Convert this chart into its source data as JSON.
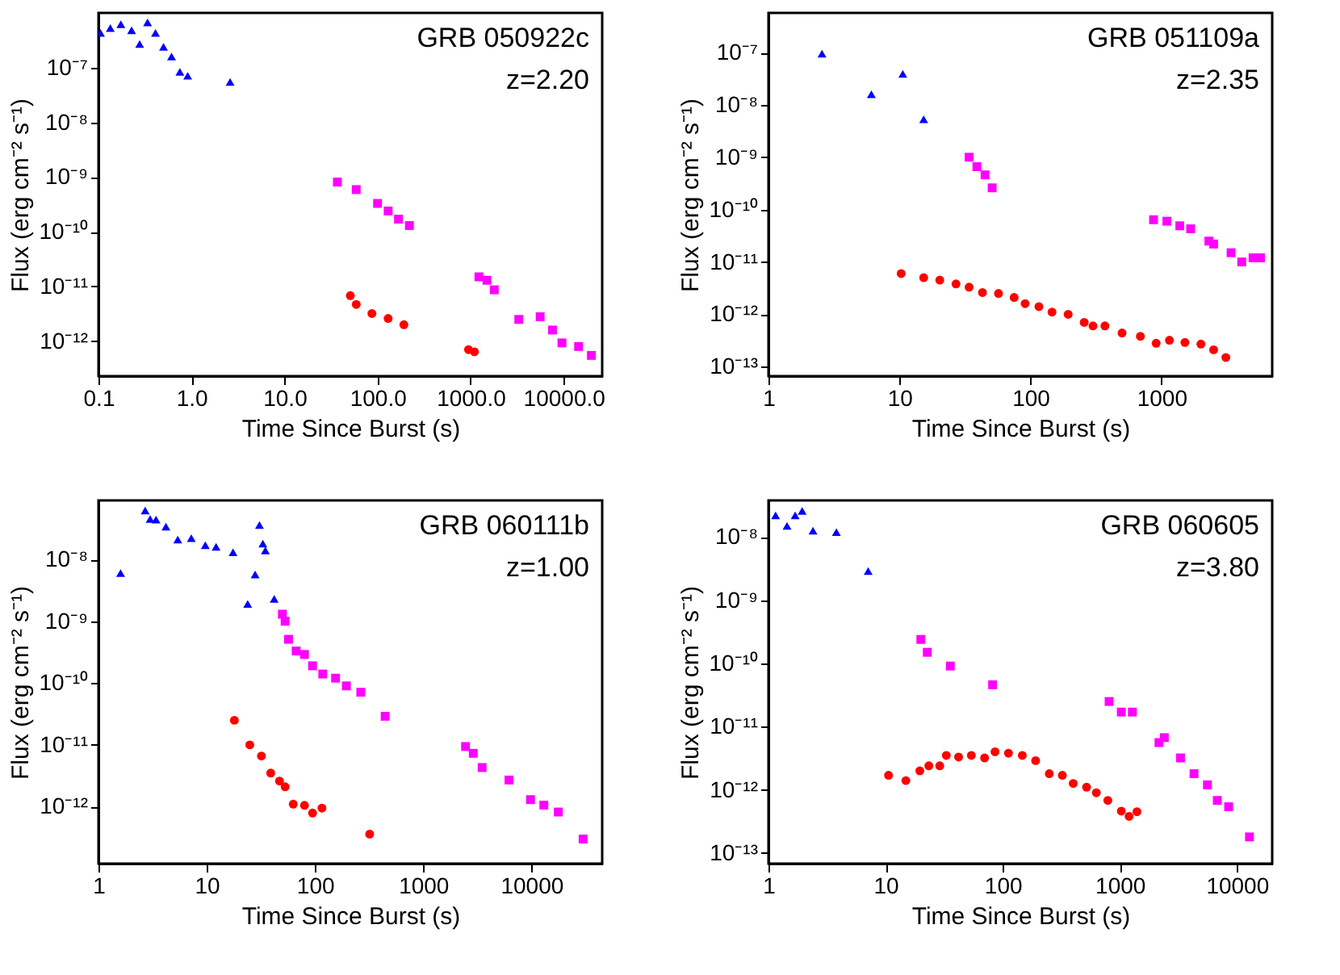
{
  "chart_data": [
    {
      "type": "scatter",
      "xlabel": "Time Since Burst (s)",
      "ylabel": "Flux (erg cm⁻² s⁻¹)",
      "annotations": [
        "GRB 050922c",
        "z=2.20"
      ],
      "log": "xy",
      "grid": false,
      "xlim": [
        0.1,
        26000
      ],
      "ylim": [
        2.3e-13,
        1e-06
      ],
      "xticks": [
        0.1,
        {
          "value": 1,
          "label": "1.0"
        },
        {
          "value": 10,
          "label": "10.0"
        },
        {
          "value": 100,
          "label": "100.0"
        },
        {
          "value": 1000,
          "label": "1000.0"
        },
        {
          "value": 10000,
          "label": "10000.0"
        }
      ],
      "yticks": [
        {
          "value": 1e-07,
          "label": "10⁻⁷"
        },
        {
          "value": 1e-08,
          "label": "10⁻⁸"
        },
        {
          "value": 1e-09,
          "label": "10⁻⁹"
        },
        {
          "value": 1e-10,
          "label": "10⁻¹⁰"
        },
        {
          "value": 1e-11,
          "label": "10⁻¹¹"
        },
        {
          "value": 1e-12,
          "label": "10⁻¹²"
        }
      ],
      "series": [
        {
          "color": "#0000ff",
          "marker": "triangle",
          "x": [
            0.105,
            0.134,
            0.174,
            0.227,
            0.277,
            0.337,
            0.41,
            0.5,
            0.61,
            0.75,
            0.91,
            2.6
          ],
          "values": [
            4.3e-07,
            5.3e-07,
            6.2e-07,
            4.8e-07,
            2.7e-07,
            6.7e-07,
            4.3e-07,
            2.4e-07,
            1.6e-07,
            8.4e-08,
            7.1e-08,
            5.5e-08
          ]
        },
        {
          "color": "#ff00ff",
          "marker": "square",
          "x": [
            37,
            59,
            100,
            130,
            168,
            220,
            1230,
            1500,
            1800,
            3300,
            5600,
            7600,
            9600,
            14500,
            19900
          ],
          "values": [
            8.1e-10,
            5.9e-10,
            3.3e-10,
            2.4e-10,
            1.7e-10,
            1.3e-10,
            1.5e-11,
            1.3e-11,
            8.7e-12,
            2.5e-12,
            2.8e-12,
            1.6e-12,
            9.3e-13,
            8e-13,
            5.5e-13
          ]
        },
        {
          "color": "#ff0000",
          "marker": "circle",
          "x": [
            51,
            59,
            87,
            130,
            192,
            950,
            1100
          ],
          "values": [
            6.8e-12,
            4.7e-12,
            3.2e-12,
            2.6e-12,
            2e-12,
            7e-13,
            6.4e-13
          ]
        }
      ]
    },
    {
      "type": "scatter",
      "xlabel": "Time Since Burst (s)",
      "ylabel": "Flux (erg cm⁻² s⁻¹)",
      "annotations": [
        "GRB 051109a",
        "z=2.35"
      ],
      "log": "xy",
      "grid": false,
      "xlim": [
        1,
        7000
      ],
      "ylim": [
        6.6e-14,
        5.7e-07
      ],
      "xticks": [
        1,
        10,
        100,
        1000
      ],
      "yticks": [
        {
          "value": 1e-07,
          "label": "10⁻⁷"
        },
        {
          "value": 1e-08,
          "label": "10⁻⁸"
        },
        {
          "value": 1e-09,
          "label": "10⁻⁹"
        },
        {
          "value": 1e-10,
          "label": "10⁻¹⁰"
        },
        {
          "value": 1e-11,
          "label": "10⁻¹¹"
        },
        {
          "value": 1e-12,
          "label": "10⁻¹²"
        },
        {
          "value": 1e-13,
          "label": "10⁻¹³"
        }
      ],
      "series": [
        {
          "color": "#0000ff",
          "marker": "triangle",
          "x": [
            2.56,
            6.1,
            10.6,
            15.3
          ],
          "values": [
            9.5e-08,
            1.6e-08,
            3.9e-08,
            5.3e-09
          ]
        },
        {
          "color": "#ff00ff",
          "marker": "square",
          "x": [
            34,
            39,
            45,
            51,
            870,
            1100,
            1380,
            1670,
            2300,
            2500,
            3400,
            4100,
            5000,
            5700
          ],
          "values": [
            1e-09,
            6.6e-10,
            4.6e-10,
            2.6e-10,
            6.4e-11,
            6e-11,
            4.9e-11,
            4.3e-11,
            2.5e-11,
            2.2e-11,
            1.5e-11,
            1e-11,
            1.2e-11,
            1.2e-11
          ]
        },
        {
          "color": "#ff0000",
          "marker": "circle",
          "x": [
            10.3,
            15.3,
            20.3,
            27,
            34,
            43,
            57,
            75,
            91,
            116,
            146,
            194,
            257,
            300,
            370,
            500,
            690,
            910,
            1150,
            1510,
            2000,
            2500,
            3100
          ],
          "values": [
            6e-12,
            5e-12,
            4.5e-12,
            3.8e-12,
            3.3e-12,
            2.6e-12,
            2.5e-12,
            2.1e-12,
            1.6e-12,
            1.4e-12,
            1.1e-12,
            1e-12,
            7e-13,
            6e-13,
            6e-13,
            4.4e-13,
            3.8e-13,
            2.8e-13,
            3.2e-13,
            2.9e-13,
            2.7e-13,
            2.1e-13,
            1.5e-13
          ]
        }
      ]
    },
    {
      "type": "scatter",
      "xlabel": "Time Since Burst (s)",
      "ylabel": "Flux (erg cm⁻² s⁻¹)",
      "annotations": [
        "GRB 060111b",
        "z=1.00"
      ],
      "log": "xy",
      "grid": false,
      "xlim": [
        1,
        45000
      ],
      "ylim": [
        1.2e-13,
        9e-08
      ],
      "xticks": [
        1,
        10,
        100,
        1000,
        10000
      ],
      "yticks": [
        {
          "value": 1e-08,
          "label": "10⁻⁸"
        },
        {
          "value": 1e-09,
          "label": "10⁻⁹"
        },
        {
          "value": 1e-10,
          "label": "10⁻¹⁰"
        },
        {
          "value": 1e-11,
          "label": "10⁻¹¹"
        },
        {
          "value": 1e-12,
          "label": "10⁻¹²"
        }
      ],
      "series": [
        {
          "color": "#0000ff",
          "marker": "triangle",
          "x": [
            1.6,
            2.7,
            3.0,
            3.4,
            4.2,
            5.4,
            7.2,
            9.7,
            12.2,
            17.5,
            23.9,
            28,
            30.7,
            33,
            34.8,
            42
          ],
          "values": [
            6e-09,
            6.2e-08,
            4.5e-08,
            4.4e-08,
            3.4e-08,
            2.1e-08,
            2.2e-08,
            1.7e-08,
            1.6e-08,
            1.3e-08,
            1.9e-09,
            5.7e-09,
            3.6e-08,
            1.8e-08,
            1.4e-08,
            2.3e-09
          ]
        },
        {
          "color": "#ff00ff",
          "marker": "square",
          "x": [
            50,
            53,
            57,
            67,
            80,
            95,
            118,
            155,
            195,
            265,
            445,
            2460,
            2900,
            3500,
            6200,
            9800,
            13000,
            17700,
            30000
          ],
          "values": [
            1.3e-09,
            1e-09,
            5.1e-10,
            3.3e-10,
            2.9e-10,
            1.9e-10,
            1.4e-10,
            1.2e-10,
            9e-11,
            7.1e-11,
            2.9e-11,
            9.4e-12,
            7.3e-12,
            4.3e-12,
            2.7e-12,
            1.3e-12,
            1.06e-12,
            8.2e-13,
            3e-13
          ]
        },
        {
          "color": "#ff0000",
          "marker": "circle",
          "x": [
            18,
            25,
            32,
            39,
            47,
            53,
            63,
            80,
            95,
            116,
            320
          ],
          "values": [
            2.5e-11,
            1e-11,
            6.6e-12,
            3.5e-12,
            2.6e-12,
            2.1e-12,
            1.1e-12,
            1.05e-12,
            7.9e-13,
            9.5e-13,
            3.6e-13
          ]
        }
      ]
    },
    {
      "type": "scatter",
      "xlabel": "Time Since Burst (s)",
      "ylabel": "Flux (erg cm⁻² s⁻¹)",
      "annotations": [
        "GRB 060605",
        "z=3.80"
      ],
      "log": "xy",
      "grid": false,
      "xlim": [
        1,
        20000
      ],
      "ylim": [
        6.8e-14,
        3.8e-08
      ],
      "xticks": [
        1,
        10,
        100,
        1000,
        10000
      ],
      "yticks": [
        {
          "value": 1e-08,
          "label": "10⁻⁸"
        },
        {
          "value": 1e-09,
          "label": "10⁻⁹"
        },
        {
          "value": 1e-10,
          "label": "10⁻¹⁰"
        },
        {
          "value": 1e-11,
          "label": "10⁻¹¹"
        },
        {
          "value": 1e-12,
          "label": "10⁻¹²"
        },
        {
          "value": 1e-13,
          "label": "10⁻¹³"
        }
      ],
      "series": [
        {
          "color": "#0000ff",
          "marker": "triangle",
          "x": [
            1.15,
            1.44,
            1.69,
            1.94,
            2.4,
            3.8,
            7.1
          ],
          "values": [
            2.2e-08,
            1.5e-08,
            2.2e-08,
            2.6e-08,
            1.26e-08,
            1.2e-08,
            2.9e-09
          ]
        },
        {
          "color": "#ff00ff",
          "marker": "square",
          "x": [
            20,
            22.7,
            35.7,
            82,
            810,
            1030,
            1280,
            2160,
            2400,
            3300,
            4300,
            5600,
            6800,
            8500,
            12800
          ],
          "values": [
            2.4e-10,
            1.5e-10,
            9.1e-11,
            4.6e-11,
            2.5e-11,
            1.7e-11,
            1.7e-11,
            5.6e-12,
            6.7e-12,
            3.2e-12,
            1.8e-12,
            1.2e-12,
            6.8e-13,
            5.4e-13,
            1.8e-13
          ]
        },
        {
          "color": "#ff0000",
          "marker": "circle",
          "x": [
            10.6,
            14.9,
            19.6,
            23.4,
            29,
            33,
            42,
            54,
            70,
            86,
            112,
            147,
            191,
            250,
            323,
            400,
            520,
            630,
            790,
            1030,
            1200,
            1400
          ],
          "values": [
            1.7e-12,
            1.4e-12,
            2e-12,
            2.4e-12,
            2.4e-12,
            3.5e-12,
            3.3e-12,
            3.5e-12,
            3.2e-12,
            4e-12,
            3.8e-12,
            3.5e-12,
            2.9e-12,
            1.8e-12,
            1.7e-12,
            1.26e-12,
            1.1e-12,
            9e-13,
            6.8e-13,
            4.6e-13,
            3.8e-13,
            4.5e-13
          ]
        }
      ]
    }
  ]
}
